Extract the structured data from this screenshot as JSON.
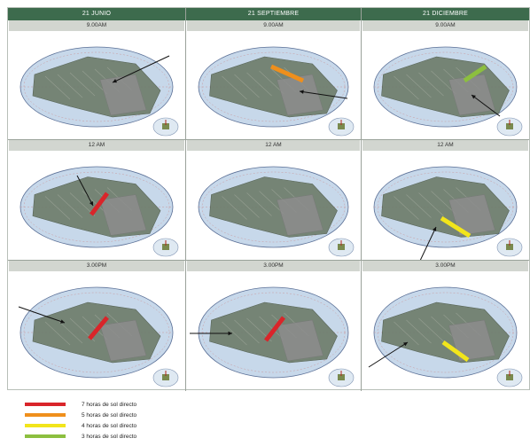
{
  "columns": [
    "21 JUNIO",
    "21 SEPTIEMBRE",
    "21 DICIEMBRE"
  ],
  "rows": [
    "9.00AM",
    "12 AM",
    "3.00PM"
  ],
  "cells": [
    [
      {
        "hours_bar": null,
        "arrow": true
      },
      {
        "hours_bar": "5",
        "arrow": true
      },
      {
        "hours_bar": "3",
        "arrow": true
      }
    ],
    [
      {
        "hours_bar": "7",
        "arrow": true
      },
      {
        "hours_bar": null,
        "arrow": false
      },
      {
        "hours_bar": "4",
        "arrow": true
      }
    ],
    [
      {
        "hours_bar": "7",
        "arrow": true
      },
      {
        "hours_bar": "7",
        "arrow": true
      },
      {
        "hours_bar": "4",
        "arrow": true
      }
    ]
  ],
  "legend": [
    {
      "key": "7",
      "label": "7 horas de sol directo",
      "color": "#d9252a"
    },
    {
      "key": "5",
      "label": "5 horas de sol directo",
      "color": "#ef8f1c"
    },
    {
      "key": "4",
      "label": "4 horas de sol directo",
      "color": "#f2e51b"
    },
    {
      "key": "3",
      "label": "3 horas de sol directo",
      "color": "#8cbf3f"
    }
  ],
  "colors": {
    "header_bg": "#3d6b4d",
    "row_label_bg": "#d2d6d0",
    "dome_fill": "#c7d8ea",
    "terrain": "#6f7d6c",
    "building": "#8d8d8d"
  },
  "icons": [
    "sun-path-dome",
    "compass-icon",
    "sun-direction-arrow"
  ]
}
